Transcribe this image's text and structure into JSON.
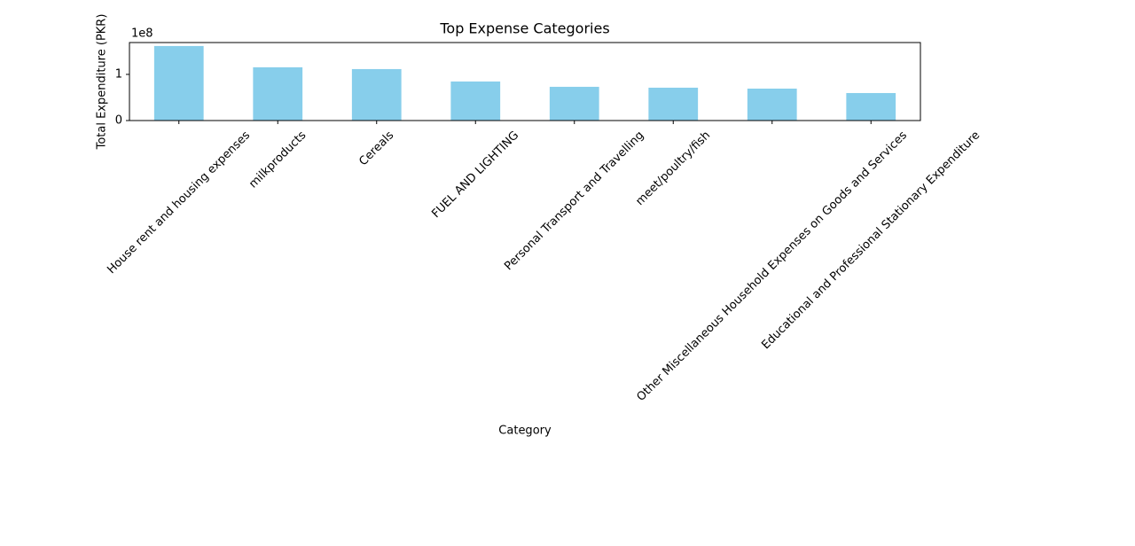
{
  "chart_data": {
    "type": "bar",
    "title": "Top Expense Categories",
    "x_label": "Category",
    "y_label": "Total Expenditure (PKR)",
    "y_offset_label": "1e8",
    "categories": [
      "House rent and housing expenses",
      "milkproducts",
      "Cereals",
      "FUEL AND LIGHTING",
      "Personal Transport and Travelling",
      "meet/poultry/fish",
      "Other Miscellaneous Household Expenses on Goods and Services",
      "Educational and Professional Stationary Expenditure"
    ],
    "values": [
      1.615,
      1.154,
      1.115,
      0.846,
      0.731,
      0.712,
      0.692,
      0.596
    ],
    "color": "#87ceeb",
    "ylim": [
      0,
      1.69
    ],
    "yticks": [
      0,
      1
    ],
    "grid": false
  }
}
